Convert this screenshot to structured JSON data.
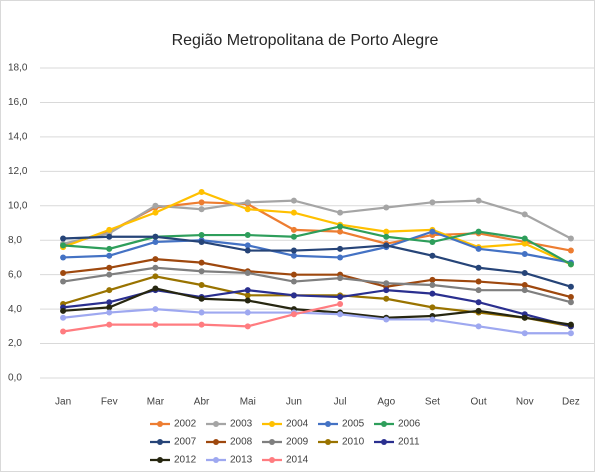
{
  "chart_data": {
    "type": "line",
    "title": "Região Metropolitana de Porto Alegre",
    "categories": [
      "Jan",
      "Fev",
      "Mar",
      "Abr",
      "Mai",
      "Jun",
      "Jul",
      "Ago",
      "Set",
      "Out",
      "Nov",
      "Dez"
    ],
    "ylim": [
      0,
      18
    ],
    "yticks": [
      {
        "value": 0,
        "label": "0,0"
      },
      {
        "value": 2,
        "label": "2,0"
      },
      {
        "value": 4,
        "label": "4,0"
      },
      {
        "value": 6,
        "label": "6,0"
      },
      {
        "value": 8,
        "label": "8,0"
      },
      {
        "value": 10,
        "label": "10,0"
      },
      {
        "value": 12,
        "label": "12,0"
      },
      {
        "value": 14,
        "label": "14,0"
      },
      {
        "value": 16,
        "label": "16,0"
      },
      {
        "value": 18,
        "label": "18,0"
      }
    ],
    "grid": true,
    "legend": "bottom",
    "series": [
      {
        "name": "2002",
        "color": "#ed7d31",
        "values": [
          7.7,
          8.5,
          9.9,
          10.2,
          10.1,
          8.6,
          8.5,
          7.8,
          8.3,
          8.4,
          7.9,
          7.4
        ]
      },
      {
        "name": "2003",
        "color": "#a5a5a5",
        "values": [
          7.8,
          8.4,
          10.0,
          9.8,
          10.2,
          10.3,
          9.6,
          9.9,
          10.2,
          10.3,
          9.5,
          8.1
        ]
      },
      {
        "name": "2004",
        "color": "#ffc000",
        "values": [
          7.6,
          8.6,
          9.6,
          10.8,
          9.8,
          9.6,
          8.9,
          8.5,
          8.6,
          7.6,
          7.8,
          6.6
        ]
      },
      {
        "name": "2005",
        "color": "#4472c4",
        "values": [
          7.0,
          7.1,
          7.9,
          8.0,
          7.7,
          7.1,
          7.0,
          7.6,
          8.5,
          7.5,
          7.2,
          6.7
        ]
      },
      {
        "name": "2006",
        "color": "#2e9e5b",
        "values": [
          7.7,
          7.5,
          8.2,
          8.3,
          8.3,
          8.2,
          8.8,
          8.2,
          7.9,
          8.5,
          8.1,
          6.6
        ]
      },
      {
        "name": "2007",
        "color": "#264478",
        "values": [
          8.1,
          8.2,
          8.2,
          7.9,
          7.4,
          7.4,
          7.5,
          7.7,
          7.1,
          6.4,
          6.1,
          5.3
        ]
      },
      {
        "name": "2008",
        "color": "#9e480e",
        "values": [
          6.1,
          6.4,
          6.9,
          6.7,
          6.2,
          6.0,
          6.0,
          5.3,
          5.7,
          5.6,
          5.4,
          4.7
        ]
      },
      {
        "name": "2009",
        "color": "#7f7f7f",
        "values": [
          5.6,
          6.0,
          6.4,
          6.2,
          6.1,
          5.6,
          5.8,
          5.5,
          5.4,
          5.1,
          5.1,
          4.4
        ]
      },
      {
        "name": "2010",
        "color": "#997300",
        "values": [
          4.3,
          5.1,
          5.9,
          5.4,
          4.8,
          4.8,
          4.8,
          4.6,
          4.1,
          3.8,
          3.5,
          3.0
        ]
      },
      {
        "name": "2011",
        "color": "#2a2f8f",
        "values": [
          4.1,
          4.4,
          5.1,
          4.7,
          5.1,
          4.8,
          4.7,
          5.1,
          4.9,
          4.4,
          3.7,
          3.0
        ]
      },
      {
        "name": "2012",
        "color": "#262610",
        "values": [
          3.9,
          4.1,
          5.2,
          4.6,
          4.5,
          4.0,
          3.8,
          3.5,
          3.6,
          3.9,
          3.5,
          3.1
        ]
      },
      {
        "name": "2013",
        "color": "#9ea8f0",
        "values": [
          3.5,
          3.8,
          4.0,
          3.8,
          3.8,
          3.8,
          3.7,
          3.4,
          3.4,
          3.0,
          2.6,
          2.6
        ]
      },
      {
        "name": "2014",
        "color": "#ff7c80",
        "values": [
          2.7,
          3.1,
          3.1,
          3.1,
          3.0,
          3.7,
          4.3,
          null,
          null,
          null,
          null,
          null
        ]
      }
    ]
  }
}
